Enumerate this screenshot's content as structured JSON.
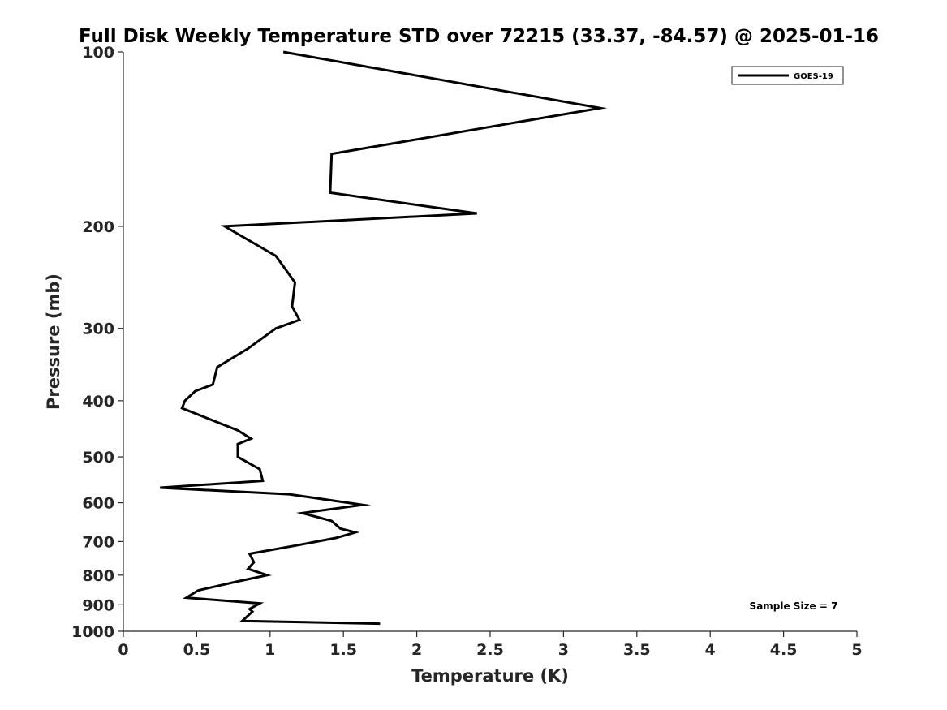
{
  "chart_data": {
    "type": "line",
    "title": "Full Disk Weekly Temperature STD over 72215 (33.37, -84.57) @ 2025-01-16",
    "xlabel": "Temperature (K)",
    "ylabel": "Pressure (mb)",
    "xlim": [
      0,
      5
    ],
    "ylim": [
      100,
      1000
    ],
    "yscale": "log",
    "yreversed": true,
    "grid": false,
    "legend_position": "top-right",
    "xticks": [
      0,
      0.5,
      1,
      1.5,
      2,
      2.5,
      3,
      3.5,
      4,
      4.5,
      5
    ],
    "xtick_labels": [
      "0",
      "0.5",
      "1",
      "1.5",
      "2",
      "2.5",
      "3",
      "3.5",
      "4",
      "4.5",
      "5"
    ],
    "yticks": [
      100,
      200,
      300,
      400,
      500,
      600,
      700,
      800,
      900,
      1000
    ],
    "ytick_labels": [
      "100",
      "200",
      "300",
      "400",
      "500",
      "600",
      "700",
      "800",
      "900",
      "1000"
    ],
    "annotation": "Sample Size = 7",
    "series": [
      {
        "name": "GOES-19",
        "color": "#000000",
        "points": [
          [
            1.09,
            100
          ],
          [
            3.25,
            125
          ],
          [
            1.42,
            150
          ],
          [
            1.41,
            175
          ],
          [
            2.41,
            190
          ],
          [
            0.69,
            200
          ],
          [
            1.04,
            225
          ],
          [
            1.17,
            250
          ],
          [
            1.15,
            275
          ],
          [
            1.2,
            290
          ],
          [
            1.04,
            300
          ],
          [
            0.85,
            325
          ],
          [
            0.64,
            350
          ],
          [
            0.61,
            375
          ],
          [
            0.49,
            385
          ],
          [
            0.42,
            400
          ],
          [
            0.4,
            412
          ],
          [
            0.78,
            450
          ],
          [
            0.87,
            465
          ],
          [
            0.78,
            475
          ],
          [
            0.78,
            500
          ],
          [
            0.93,
            525
          ],
          [
            0.95,
            550
          ],
          [
            0.25,
            565
          ],
          [
            1.13,
            580
          ],
          [
            1.63,
            605
          ],
          [
            1.22,
            625
          ],
          [
            1.42,
            645
          ],
          [
            1.48,
            665
          ],
          [
            1.58,
            675
          ],
          [
            1.45,
            690
          ],
          [
            1.19,
            710
          ],
          [
            0.86,
            735
          ],
          [
            0.89,
            760
          ],
          [
            0.85,
            780
          ],
          [
            0.98,
            800
          ],
          [
            0.78,
            820
          ],
          [
            0.51,
            850
          ],
          [
            0.43,
            875
          ],
          [
            0.93,
            895
          ],
          [
            0.86,
            915
          ],
          [
            0.88,
            925
          ],
          [
            0.81,
            960
          ],
          [
            1.75,
            970
          ]
        ]
      }
    ]
  }
}
